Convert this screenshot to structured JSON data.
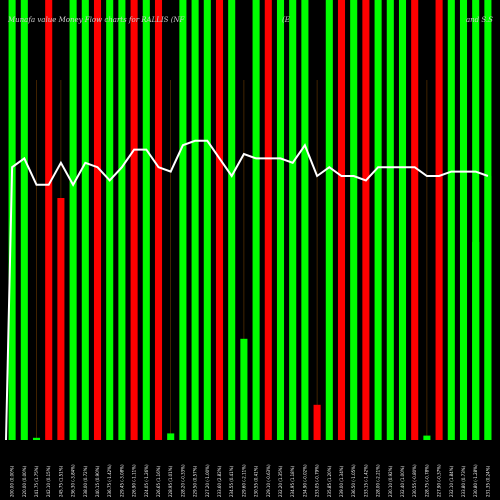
{
  "chart_data": {
    "type": "bar",
    "title": "Munafa value Money Flow charts for RALLIS (NF",
    "title_right": "and S.S",
    "title_mid": "(E",
    "colors": {
      "up": "#00ff00",
      "down": "#ff0000",
      "line": "#ffffff",
      "background": "#000000",
      "separator": "#6b3a00"
    },
    "ylim": [
      0,
      100
    ],
    "line_ylim": [
      0,
      100
    ],
    "categories": [
      "Fri 05 Apr 2024",
      "Thu 04 Apr 2024",
      "Wed 03 Apr 2024",
      "Tue 02 Apr 2024",
      "Mon 01 Apr 2024",
      "Thu 28 Mar 2024",
      "Wed 27 Mar 2024",
      "Tue 26 Mar 2024",
      "Fri 22 Mar 2024",
      "Thu 21 Mar 2024",
      "Wed 20 Mar 2024",
      "Tue 19 Mar 2024",
      "Mon 18 Mar 2024",
      "Fri 15 Mar 2024",
      "Thu 14 Mar 2024",
      "Wed 13 Mar 2024",
      "Tue 12 Mar 2024",
      "Mon 11 Mar 2024",
      "Thu 07 Mar 2024",
      "Wed 06 Mar 2024",
      "Tue 05 Mar 2024",
      "Mon 04 Mar 2024",
      "Sat 02 Mar 2024",
      "Fri 01 Mar 2024",
      "Thu 29 Feb 2024",
      "Wed 28 Feb 2024",
      "Tue 27 Feb 2024",
      "Mon 26 Feb 2024",
      "Fri 23 Feb 2024",
      "Thu 22 Feb 2024",
      "Wed 21 Feb 2024",
      "Tue 20 Feb 2024",
      "Mon 19 Feb 2024",
      "Fri 16 Feb 2024",
      "Thu 15 Feb 2024",
      "Wed 14 Feb 2024",
      "Tue 13 Feb 2024",
      "Mon 12 Feb 2024",
      "Fri 09 Feb 2024",
      "Thu 08 Feb 2024"
    ],
    "tick_labels": [
      "200.00 (0.00%)",
      "220.00 (0.00%)",
      "241.75 (1.75%)",
      "242.10 (0.15%)",
      "245.75 (1.51%)",
      "236.30 (-3.84%)",
      "238.00 (0.72%)",
      "240.15 (0.90%)",
      "236.75 (-1.42%)",
      "229.45 (-3.08%)",
      "226.90 (-1.11%)",
      "224.05 (-1.26%)",
      "226.65 (1.16%)",
      "228.95 (1.01%)",
      "228.20 (-0.33%)",
      "229.50 (0.57%)",
      "227.20 (-1.00%)",
      "233.60 (2.82%)",
      "234.55 (0.41%)",
      "229.60 (-2.11%)",
      "230.55 (0.41%)",
      "229.10 (-0.63%)",
      "232.20 (1.35%)",
      "234.95 (1.18%)",
      "234.90 (-0.02%)",
      "233.05 (-0.79%)",
      "235.85 (1.20%)",
      "239.00 (1.34%)",
      "236.50 (-1.05%)",
      "233.15 (-1.42%)",
      "228.00 (-2.21%)",
      "230.10 (0.92%)",
      "232.40 (1.00%)",
      "230.55 (-0.80%)",
      "228.75 (-0.78%)",
      "227.90 (-0.37%)",
      "232.10 (1.84%)",
      "233.80 (0.73%)",
      "230.80 (-1.28%)",
      "231.35 (0.24%)"
    ],
    "series": [
      {
        "values": [
          100,
          100,
          0.5,
          100,
          55,
          100,
          100,
          100,
          100,
          100,
          100,
          100,
          100,
          1.5,
          100,
          100,
          100,
          100,
          100,
          23,
          100,
          100,
          100,
          100,
          100,
          8,
          100,
          100,
          100,
          100,
          100,
          100,
          100,
          100,
          1,
          100,
          100,
          100,
          100,
          100
        ],
        "directions": [
          "up",
          "up",
          "up",
          "down",
          "down",
          "up",
          "up",
          "down",
          "up",
          "up",
          "down",
          "up",
          "down",
          "up",
          "up",
          "up",
          "up",
          "down",
          "up",
          "up",
          "up",
          "down",
          "up",
          "up",
          "up",
          "down",
          "up",
          "down",
          "up",
          "down",
          "up",
          "up",
          "up",
          "down",
          "up",
          "down",
          "up",
          "up",
          "up",
          "up"
        ]
      }
    ],
    "extra_bars": [
      {
        "values": [
          0,
          0,
          0,
          0,
          0,
          0,
          0,
          0,
          0,
          0,
          0,
          0,
          0,
          0,
          0,
          0,
          0,
          0,
          0,
          0,
          0,
          0,
          0,
          0,
          0,
          0,
          0,
          0,
          0,
          0,
          0,
          0,
          0,
          0,
          0,
          0,
          0,
          0,
          45,
          60
        ]
      }
    ],
    "line_values": [
      62,
      64,
      58,
      58,
      63,
      58,
      63,
      62,
      59,
      62,
      66,
      66,
      62,
      61,
      67,
      68,
      68,
      64,
      60,
      65,
      64,
      64,
      64,
      63,
      67,
      60,
      62,
      60,
      60,
      59,
      62,
      62,
      62,
      62,
      60,
      60,
      61,
      61,
      61,
      60
    ]
  }
}
